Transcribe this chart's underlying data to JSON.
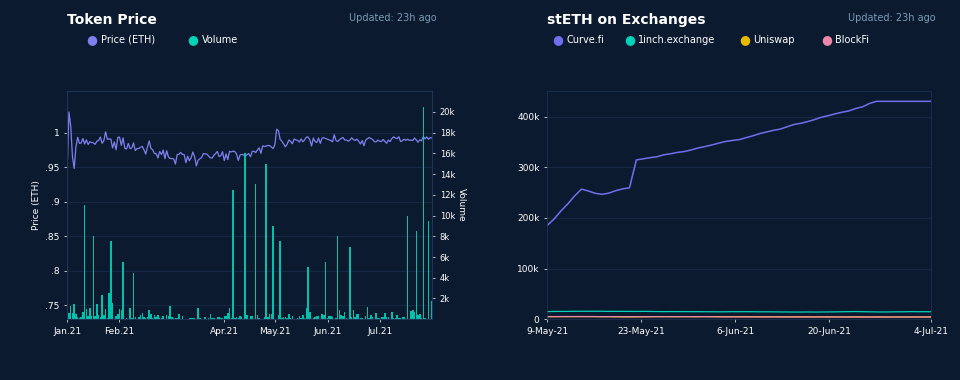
{
  "bg_color": "#0b1a2e",
  "chart_bg": "#0d1f38",
  "grid_color": "#1e3558",
  "text_color": "#ffffff",
  "subtitle_color": "#7a9ab5",
  "left_title": "Token Price",
  "left_updated": "Updated: 23h ago",
  "left_ylabel_left": "Price (ETH)",
  "left_ylabel_right": "Volume",
  "price_color": "#8080ee",
  "volume_color": "#00d4b8",
  "right_title": "stETH on Exchanges",
  "right_updated": "Updated: 23h ago",
  "curve_color": "#7070ee",
  "inch_color": "#00d4b8",
  "uniswap_color": "#e8b800",
  "blockfi_color": "#ee88aa",
  "left_xticks": [
    "Jan.21",
    "Feb.21",
    "Apr.21",
    "May.21",
    "Jun.21",
    "Jul.21"
  ],
  "left_xtick_pos": [
    0.0,
    0.143,
    0.43,
    0.57,
    0.714,
    0.857
  ],
  "right_xticks": [
    "9-May-21",
    "23-May-21",
    "6-Jun-21",
    "20-Jun-21",
    "4-Jul-21"
  ],
  "right_xtick_pos": [
    0.0,
    0.245,
    0.49,
    0.735,
    1.0
  ],
  "price_yticks": [
    0.75,
    0.8,
    0.85,
    0.9,
    0.95,
    1.0
  ],
  "volume_yticks": [
    2000,
    4000,
    6000,
    8000,
    10000,
    12000,
    14000,
    16000,
    18000,
    20000
  ],
  "right_yticks": [
    0,
    100000,
    200000,
    300000,
    400000
  ],
  "right_ylim": [
    0,
    450000
  ]
}
